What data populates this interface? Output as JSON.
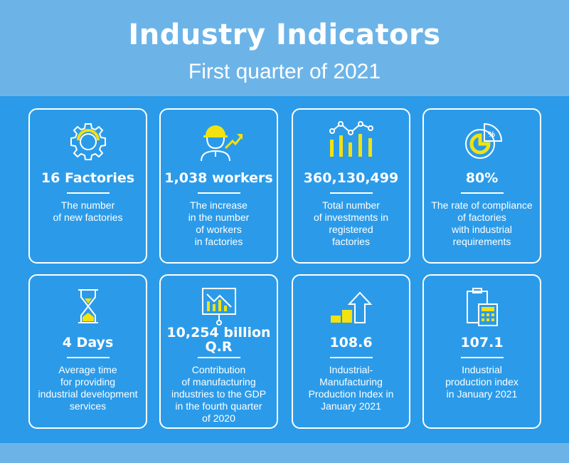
{
  "header": {
    "title": "Industry Indicators",
    "subtitle": "First quarter of 2021"
  },
  "colors": {
    "background": "#2b9be9",
    "header_band": "#6cb4e8",
    "accent": "#f3e20f",
    "text": "#ffffff"
  },
  "cards": [
    {
      "icon": "gear-icon",
      "value": "16 Factories",
      "description": "The number\nof new factories"
    },
    {
      "icon": "worker-growth-icon",
      "value": "1,038 workers",
      "description": "The increase\nin the number\nof workers\nin factories"
    },
    {
      "icon": "investment-chart-icon",
      "value": "360,130,499",
      "description": "Total number\nof investments in\nregistered\nfactories"
    },
    {
      "icon": "compliance-pie-icon",
      "value": "80%",
      "description": "The rate of compliance\nof factories\nwith industrial\nrequirements",
      "icon_text": "%"
    },
    {
      "icon": "hourglass-icon",
      "value": "4 Days",
      "description": "Average time\nfor providing\nindustrial development\nservices"
    },
    {
      "icon": "presentation-chart-icon",
      "value": "10,254 billion\nQ.R",
      "description": "Contribution\nof manufacturing\nindustries to the GDP\nin the fourth quarter\nof 2020"
    },
    {
      "icon": "growth-bars-arrow-icon",
      "value": "108.6",
      "description": "Industrial-\nManufacturing\nProduction Index in\nJanuary 2021"
    },
    {
      "icon": "calculator-document-icon",
      "value": "107.1",
      "description": "Industrial\nproduction index\nin January 2021"
    }
  ]
}
